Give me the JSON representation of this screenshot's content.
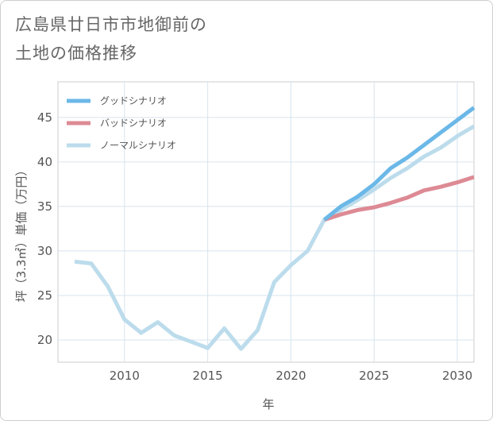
{
  "title_lines": [
    "広島県廿日市市地御前の",
    "土地の価格推移"
  ],
  "chart_data": {
    "type": "line",
    "xlabel": "年",
    "ylabel": "坪（3.3㎡）単価（万円）",
    "xlim": [
      2006,
      2031
    ],
    "ylim": [
      17.5,
      49
    ],
    "x_ticks": [
      2010,
      2015,
      2020,
      2025,
      2030
    ],
    "y_ticks": [
      20,
      25,
      30,
      35,
      40,
      45
    ],
    "grid": true,
    "legend_position": "top-left",
    "series": [
      {
        "name": "グッドシナリオ",
        "color": "#6bb8e8",
        "x": [
          2022,
          2023,
          2024,
          2025,
          2026,
          2027,
          2028,
          2029,
          2030,
          2031
        ],
        "values": [
          33.5,
          35.0,
          36.1,
          37.5,
          39.3,
          40.5,
          41.9,
          43.3,
          44.7,
          46.1
        ]
      },
      {
        "name": "バッドシナリオ",
        "color": "#dd8a94",
        "x": [
          2022,
          2023,
          2024,
          2025,
          2026,
          2027,
          2028,
          2029,
          2030,
          2031
        ],
        "values": [
          33.5,
          34.1,
          34.6,
          34.9,
          35.4,
          36.0,
          36.8,
          37.2,
          37.7,
          38.3
        ]
      },
      {
        "name": "ノーマルシナリオ",
        "color": "#bcdcec",
        "x": [
          2007,
          2008,
          2009,
          2010,
          2011,
          2012,
          2013,
          2014,
          2015,
          2016,
          2017,
          2018,
          2019,
          2020,
          2021,
          2022,
          2023,
          2024,
          2025,
          2026,
          2027,
          2028,
          2029,
          2030,
          2031
        ],
        "values": [
          28.8,
          28.6,
          26.0,
          22.3,
          20.8,
          22.0,
          20.5,
          19.8,
          19.1,
          21.3,
          19.0,
          21.1,
          26.5,
          28.4,
          30.0,
          33.5,
          34.6,
          35.7,
          36.9,
          38.2,
          39.3,
          40.6,
          41.6,
          42.9,
          44.0
        ]
      }
    ]
  }
}
